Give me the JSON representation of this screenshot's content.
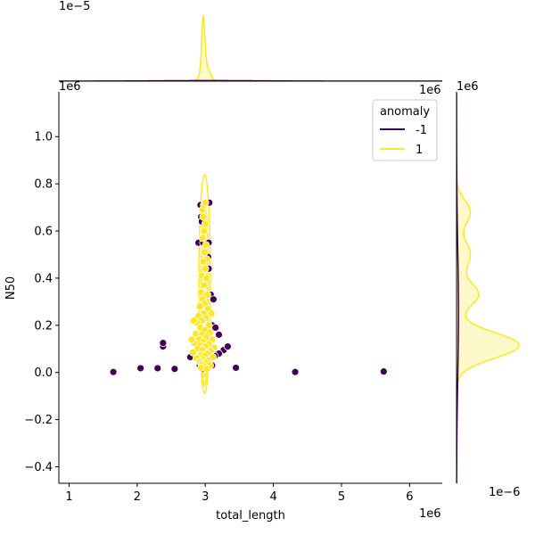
{
  "chart_data": {
    "type": "scatter",
    "variant": "jointplot with KDE contours and marginal densities",
    "xlabel": "total_length",
    "ylabel": "N50",
    "x_offset_label": "1e6",
    "y_offset_label": "1e6",
    "top_offset_label": "1e−5",
    "right_offset_label": "1e−6",
    "xlim": [
      0.85,
      6.48
    ],
    "ylim": [
      -0.47,
      1.19
    ],
    "x_ticks": [
      1,
      2,
      3,
      4,
      5,
      6
    ],
    "x_tick_labels": [
      "1",
      "2",
      "3",
      "4",
      "5",
      "6"
    ],
    "y_ticks": [
      -0.4,
      -0.2,
      0.0,
      0.2,
      0.4,
      0.6,
      0.8,
      1.0
    ],
    "y_tick_labels": [
      "−0.4",
      "−0.2",
      "0.0",
      "0.2",
      "0.4",
      "0.6",
      "0.8",
      "1.0"
    ],
    "grid": false,
    "legend": {
      "title": "anomaly",
      "placement": "top-right",
      "entries": [
        {
          "label": "-1",
          "color": "#440154"
        },
        {
          "label": "1",
          "color": "#fde725"
        }
      ]
    },
    "series": [
      {
        "name": "-1",
        "color": "#440154",
        "points": [
          [
            1.65,
            0.002
          ],
          [
            2.05,
            0.018
          ],
          [
            2.3,
            0.018
          ],
          [
            2.55,
            0.015
          ],
          [
            2.38,
            0.11
          ],
          [
            2.38,
            0.125
          ],
          [
            2.78,
            0.065
          ],
          [
            2.9,
            0.55
          ],
          [
            2.93,
            0.71
          ],
          [
            2.94,
            0.66
          ],
          [
            2.95,
            0.64
          ],
          [
            2.97,
            0.55
          ],
          [
            3.06,
            0.72
          ],
          [
            3.05,
            0.55
          ],
          [
            3.04,
            0.49
          ],
          [
            3.05,
            0.44
          ],
          [
            3.08,
            0.33
          ],
          [
            3.12,
            0.31
          ],
          [
            3.1,
            0.2
          ],
          [
            3.15,
            0.19
          ],
          [
            3.2,
            0.16
          ],
          [
            3.27,
            0.095
          ],
          [
            3.33,
            0.11
          ],
          [
            3.2,
            0.08
          ],
          [
            3.45,
            0.02
          ],
          [
            3.1,
            0.03
          ],
          [
            2.96,
            0.015
          ],
          [
            3.02,
            0.02
          ],
          [
            3.0,
            0.09
          ],
          [
            3.03,
            0.12
          ],
          [
            3.14,
            0.07
          ],
          [
            2.92,
            0.03
          ],
          [
            4.32,
            0.002
          ],
          [
            5.62,
            0.004
          ]
        ]
      },
      {
        "name": "1",
        "color": "#fde725",
        "points": [
          [
            2.96,
            0.69
          ],
          [
            2.98,
            0.71
          ],
          [
            3.0,
            0.72
          ],
          [
            2.97,
            0.66
          ],
          [
            3.0,
            0.63
          ],
          [
            2.98,
            0.6
          ],
          [
            2.96,
            0.57
          ],
          [
            3.01,
            0.54
          ],
          [
            2.99,
            0.51
          ],
          [
            3.02,
            0.48
          ],
          [
            2.97,
            0.47
          ],
          [
            3.0,
            0.44
          ],
          [
            2.95,
            0.41
          ],
          [
            3.02,
            0.4
          ],
          [
            2.98,
            0.37
          ],
          [
            2.94,
            0.34
          ],
          [
            3.03,
            0.33
          ],
          [
            2.96,
            0.31
          ],
          [
            2.99,
            0.29
          ],
          [
            2.92,
            0.28
          ],
          [
            3.04,
            0.27
          ],
          [
            2.97,
            0.25
          ],
          [
            2.9,
            0.24
          ],
          [
            3.01,
            0.23
          ],
          [
            2.95,
            0.22
          ],
          [
            2.88,
            0.21
          ],
          [
            3.05,
            0.2
          ],
          [
            2.93,
            0.19
          ],
          [
            2.99,
            0.18
          ],
          [
            3.07,
            0.17
          ],
          [
            2.86,
            0.165
          ],
          [
            2.95,
            0.16
          ],
          [
            3.02,
            0.15
          ],
          [
            2.91,
            0.14
          ],
          [
            3.1,
            0.14
          ],
          [
            2.97,
            0.13
          ],
          [
            2.84,
            0.125
          ],
          [
            3.05,
            0.12
          ],
          [
            2.93,
            0.115
          ],
          [
            3.0,
            0.11
          ],
          [
            3.13,
            0.105
          ],
          [
            2.89,
            0.1
          ],
          [
            2.96,
            0.095
          ],
          [
            3.08,
            0.09
          ],
          [
            2.82,
            0.085
          ],
          [
            3.03,
            0.08
          ],
          [
            2.94,
            0.075
          ],
          [
            2.99,
            0.07
          ],
          [
            3.11,
            0.065
          ],
          [
            2.87,
            0.06
          ],
          [
            2.97,
            0.055
          ],
          [
            3.04,
            0.05
          ],
          [
            2.92,
            0.045
          ],
          [
            3.01,
            0.04
          ],
          [
            2.95,
            0.035
          ],
          [
            3.07,
            0.03
          ],
          [
            2.99,
            0.025
          ],
          [
            2.94,
            0.02
          ],
          [
            3.02,
            0.015
          ],
          [
            2.8,
            0.14
          ],
          [
            2.83,
            0.22
          ],
          [
            3.09,
            0.25
          ]
        ]
      }
    ]
  }
}
